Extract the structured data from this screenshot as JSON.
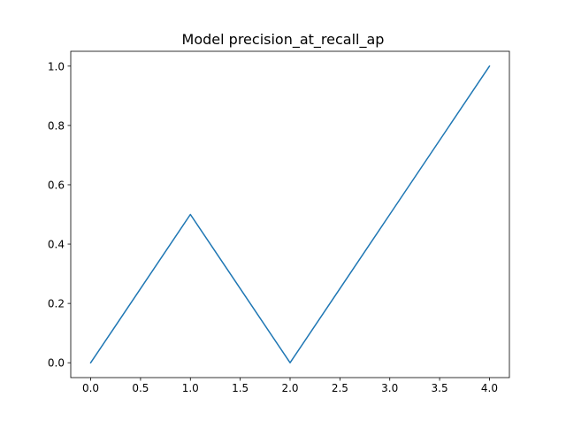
{
  "chart_data": {
    "type": "line",
    "title": "Model precision_at_recall_ap",
    "xlabel": "",
    "ylabel": "",
    "x": [
      0,
      1,
      2,
      3,
      4
    ],
    "series": [
      {
        "values": [
          0.0,
          0.5,
          0.0,
          0.5,
          1.0
        ],
        "color": "#1f77b4"
      }
    ],
    "xlim": [
      -0.2,
      4.2
    ],
    "ylim": [
      -0.05,
      1.05
    ],
    "xticks": [
      0.0,
      0.5,
      1.0,
      1.5,
      2.0,
      2.5,
      3.0,
      3.5,
      4.0
    ],
    "xtick_labels": [
      "0.0",
      "0.5",
      "1.0",
      "1.5",
      "2.0",
      "2.5",
      "3.0",
      "3.5",
      "4.0"
    ],
    "yticks": [
      0.0,
      0.2,
      0.4,
      0.6,
      0.8,
      1.0
    ],
    "ytick_labels": [
      "0.0",
      "0.2",
      "0.4",
      "0.6",
      "0.8",
      "1.0"
    ],
    "grid": false,
    "legend": "none"
  }
}
